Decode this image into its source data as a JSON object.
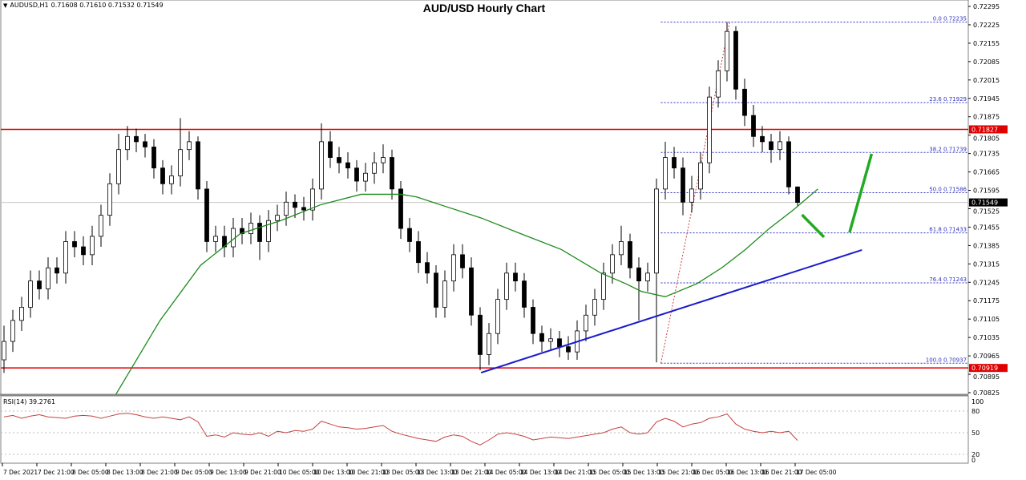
{
  "header": {
    "symbol": "AUDUSD,H1",
    "ohlc": "0.71608 0.71610 0.71532 0.71549",
    "collapse_icon": "triangle-down-icon"
  },
  "chart_data": [
    {
      "type": "candlestick",
      "title": "AUD/USD Hourly Chart",
      "ylim": [
        0.70825,
        0.72295
      ],
      "grid": false,
      "y_ticks": [
        "0.72295",
        "0.72225",
        "0.72155",
        "0.72085",
        "0.72015",
        "0.71945",
        "0.71875",
        "0.71805",
        "0.71735",
        "0.71665",
        "0.71595",
        "0.71525",
        "0.71455",
        "0.71385",
        "0.71315",
        "0.71245",
        "0.71175",
        "0.71105",
        "0.71035",
        "0.70965",
        "0.70895",
        "0.70825"
      ],
      "x_ticks": [
        "7 Dec 2021",
        "7 Dec 21:00",
        "8 Dec 05:00",
        "8 Dec 13:00",
        "8 Dec 21:00",
        "9 Dec 05:00",
        "9 Dec 13:00",
        "9 Dec 21:00",
        "10 Dec 05:00",
        "10 Dec 13:00",
        "10 Dec 21:00",
        "13 Dec 05:00",
        "13 Dec 13:00",
        "13 Dec 21:00",
        "14 Dec 05:00",
        "14 Dec 13:00",
        "14 Dec 21:00",
        "15 Dec 05:00",
        "15 Dec 13:00",
        "15 Dec 21:00",
        "16 Dec 05:00",
        "16 Dec 13:00",
        "16 Dec 21:00",
        "17 Dec 05:00"
      ],
      "candles_ohlc": [
        [
          0.7095,
          0.7108,
          0.709,
          0.7102
        ],
        [
          0.7102,
          0.7114,
          0.7098,
          0.711
        ],
        [
          0.711,
          0.7119,
          0.7106,
          0.7115
        ],
        [
          0.7115,
          0.7129,
          0.7111,
          0.7125
        ],
        [
          0.7125,
          0.7129,
          0.7118,
          0.7122
        ],
        [
          0.7122,
          0.7134,
          0.7118,
          0.713
        ],
        [
          0.713,
          0.7134,
          0.7124,
          0.7128
        ],
        [
          0.7128,
          0.7144,
          0.7124,
          0.714
        ],
        [
          0.714,
          0.7144,
          0.7134,
          0.7138
        ],
        [
          0.7138,
          0.7142,
          0.7131,
          0.7135
        ],
        [
          0.7135,
          0.7146,
          0.7131,
          0.7142
        ],
        [
          0.7142,
          0.7154,
          0.7138,
          0.715
        ],
        [
          0.715,
          0.7166,
          0.7146,
          0.7162
        ],
        [
          0.7162,
          0.7181,
          0.7158,
          0.7175
        ],
        [
          0.7175,
          0.7184,
          0.7171,
          0.718
        ],
        [
          0.718,
          0.7183,
          0.7174,
          0.7178
        ],
        [
          0.7178,
          0.7181,
          0.7172,
          0.7176
        ],
        [
          0.7176,
          0.7179,
          0.7164,
          0.7168
        ],
        [
          0.7168,
          0.7171,
          0.7158,
          0.7162
        ],
        [
          0.7162,
          0.7169,
          0.7158,
          0.7165
        ],
        [
          0.7165,
          0.7187,
          0.7161,
          0.7175
        ],
        [
          0.7175,
          0.7182,
          0.7171,
          0.7178
        ],
        [
          0.7178,
          0.718,
          0.7156,
          0.716
        ],
        [
          0.716,
          0.7163,
          0.7136,
          0.714
        ],
        [
          0.714,
          0.7146,
          0.7136,
          0.7142
        ],
        [
          0.7142,
          0.7146,
          0.7134,
          0.7138
        ],
        [
          0.7138,
          0.7149,
          0.7134,
          0.7145
        ],
        [
          0.7145,
          0.7149,
          0.7139,
          0.7143
        ],
        [
          0.7143,
          0.7151,
          0.7139,
          0.7147
        ],
        [
          0.7147,
          0.715,
          0.7133,
          0.714
        ],
        [
          0.714,
          0.7152,
          0.7136,
          0.7148
        ],
        [
          0.7148,
          0.7154,
          0.7144,
          0.715
        ],
        [
          0.715,
          0.7159,
          0.7146,
          0.7155
        ],
        [
          0.7155,
          0.7158,
          0.7149,
          0.7153
        ],
        [
          0.7153,
          0.7157,
          0.7148,
          0.7152
        ],
        [
          0.7152,
          0.7164,
          0.7148,
          0.716
        ],
        [
          0.716,
          0.7185,
          0.7156,
          0.7178
        ],
        [
          0.7178,
          0.7182,
          0.7168,
          0.7172
        ],
        [
          0.7172,
          0.7176,
          0.7166,
          0.717
        ],
        [
          0.717,
          0.7174,
          0.7164,
          0.7168
        ],
        [
          0.7168,
          0.7171,
          0.7159,
          0.7163
        ],
        [
          0.7163,
          0.717,
          0.7159,
          0.7166
        ],
        [
          0.7166,
          0.7174,
          0.7162,
          0.717
        ],
        [
          0.717,
          0.7177,
          0.7166,
          0.7172
        ],
        [
          0.7172,
          0.7175,
          0.7156,
          0.716
        ],
        [
          0.716,
          0.7163,
          0.7141,
          0.7145
        ],
        [
          0.7145,
          0.7149,
          0.7136,
          0.714
        ],
        [
          0.714,
          0.7144,
          0.7128,
          0.7132
        ],
        [
          0.7132,
          0.7136,
          0.7124,
          0.7128
        ],
        [
          0.7128,
          0.7131,
          0.7111,
          0.7115
        ],
        [
          0.7115,
          0.7129,
          0.7111,
          0.7125
        ],
        [
          0.7125,
          0.7139,
          0.7121,
          0.7135
        ],
        [
          0.7135,
          0.7139,
          0.7126,
          0.713
        ],
        [
          0.713,
          0.7134,
          0.7108,
          0.7112
        ],
        [
          0.7112,
          0.7115,
          0.7091,
          0.7097
        ],
        [
          0.7097,
          0.7109,
          0.7093,
          0.7105
        ],
        [
          0.7105,
          0.7122,
          0.7101,
          0.7118
        ],
        [
          0.7118,
          0.7132,
          0.7114,
          0.7128
        ],
        [
          0.7128,
          0.7132,
          0.7121,
          0.7125
        ],
        [
          0.7125,
          0.7128,
          0.7111,
          0.7115
        ],
        [
          0.7115,
          0.7118,
          0.7101,
          0.7105
        ],
        [
          0.7105,
          0.7108,
          0.7098,
          0.7102
        ],
        [
          0.7102,
          0.7107,
          0.7099,
          0.7103
        ],
        [
          0.7103,
          0.7106,
          0.7096,
          0.71
        ],
        [
          0.71,
          0.7104,
          0.7095,
          0.7098
        ],
        [
          0.7098,
          0.711,
          0.7095,
          0.7106
        ],
        [
          0.7106,
          0.7116,
          0.7102,
          0.7112
        ],
        [
          0.7112,
          0.7122,
          0.7108,
          0.7118
        ],
        [
          0.7118,
          0.7132,
          0.7114,
          0.7128
        ],
        [
          0.7128,
          0.7139,
          0.7124,
          0.7135
        ],
        [
          0.7135,
          0.7146,
          0.7131,
          0.714
        ],
        [
          0.714,
          0.7143,
          0.7126,
          0.713
        ],
        [
          0.713,
          0.7134,
          0.711,
          0.7125
        ],
        [
          0.7125,
          0.7132,
          0.7121,
          0.7128
        ],
        [
          0.7128,
          0.7164,
          0.7094,
          0.716
        ],
        [
          0.716,
          0.7178,
          0.7156,
          0.7172
        ],
        [
          0.7172,
          0.7176,
          0.7164,
          0.7168
        ],
        [
          0.7168,
          0.7172,
          0.715,
          0.7155
        ],
        [
          0.7155,
          0.7165,
          0.7151,
          0.716
        ],
        [
          0.716,
          0.7174,
          0.7156,
          0.717
        ],
        [
          0.717,
          0.7199,
          0.7166,
          0.7195
        ],
        [
          0.7195,
          0.7209,
          0.7191,
          0.7205
        ],
        [
          0.7205,
          0.72235,
          0.7201,
          0.722
        ],
        [
          0.722,
          0.7222,
          0.7194,
          0.7198
        ],
        [
          0.7198,
          0.7202,
          0.7184,
          0.7188
        ],
        [
          0.7188,
          0.7192,
          0.7176,
          0.718
        ],
        [
          0.718,
          0.7184,
          0.7174,
          0.7178
        ],
        [
          0.7178,
          0.7181,
          0.717,
          0.7175
        ],
        [
          0.7175,
          0.7182,
          0.7171,
          0.7178
        ],
        [
          0.7178,
          0.718,
          0.7158,
          0.71608
        ],
        [
          0.71608,
          0.7161,
          0.71532,
          0.71549
        ]
      ],
      "moving_average": [
        [
          12.7,
          0.70819
        ],
        [
          17.7,
          0.711
        ],
        [
          22.3,
          0.7131
        ],
        [
          26.8,
          0.7143
        ],
        [
          31.4,
          0.7148
        ],
        [
          35.9,
          0.7154
        ],
        [
          40.5,
          0.7158
        ],
        [
          45,
          0.7158
        ],
        [
          46.8,
          0.7157
        ],
        [
          49.5,
          0.7154
        ],
        [
          54.1,
          0.7149
        ],
        [
          58.6,
          0.7143
        ],
        [
          63.2,
          0.7137
        ],
        [
          67.7,
          0.7128
        ],
        [
          70.5,
          0.7124
        ],
        [
          72.3,
          0.7121
        ],
        [
          75,
          0.7119
        ],
        [
          78.6,
          0.7124
        ],
        [
          81.4,
          0.713
        ],
        [
          84.1,
          0.7137
        ],
        [
          86.8,
          0.7145
        ],
        [
          89.5,
          0.7152
        ],
        [
          92.3,
          0.716
        ]
      ],
      "horizontal_lines": [
        {
          "price": 0.71827,
          "label": "0.71827",
          "color": "#e00000"
        },
        {
          "price": 0.70919,
          "label": "0.70919",
          "color": "#e00000"
        },
        {
          "price": 0.71549,
          "label": "0.71549",
          "color": "#c8c8c8"
        }
      ],
      "fibonacci": {
        "from": [
          74.5,
          0.70937
        ],
        "to": [
          82.3,
          0.72235
        ],
        "levels": [
          {
            "label": "0.0 0.72235",
            "price": 0.72235
          },
          {
            "label": "23.6 0.71929",
            "price": 0.71929
          },
          {
            "label": "38.2 0.71739",
            "price": 0.71739
          },
          {
            "label": "50.0 0.71586",
            "price": 0.71586
          },
          {
            "label": "61.8 0.71433",
            "price": 0.71433
          },
          {
            "label": "76.4 0.71243",
            "price": 0.71243
          },
          {
            "label": "100.0 0.70937",
            "price": 0.70937
          }
        ],
        "color": "#3030c0"
      },
      "trendline": {
        "from": [
          54.1,
          0.70901
        ],
        "to": [
          97.3,
          0.71368
        ],
        "color": "#1a1acc"
      },
      "arrows": [
        {
          "from": [
            90.5,
            0.71502
          ],
          "to": [
            93,
            0.71417
          ],
          "color": "#22aa22"
        },
        {
          "from": [
            95.9,
            0.71435
          ],
          "to": [
            98.4,
            0.71734
          ],
          "color": "#22aa22"
        }
      ],
      "colors": {
        "bull": "#ffffff",
        "bear": "#000000",
        "ma": "#1a8a1a"
      }
    },
    {
      "type": "line",
      "title": "RSI(14) 39.2761",
      "ylim": [
        0,
        100
      ],
      "y_ticks": [
        "100",
        "80",
        "50",
        "20",
        "0"
      ],
      "levels": [
        80,
        50,
        20
      ],
      "values": [
        72,
        74,
        70,
        73,
        75,
        72,
        71,
        70,
        73,
        74,
        73,
        70,
        73,
        76,
        77,
        75,
        72,
        70,
        72,
        70,
        68,
        72,
        65,
        45,
        47,
        44,
        50,
        48,
        47,
        50,
        45,
        52,
        50,
        53,
        52,
        55,
        66,
        62,
        58,
        57,
        55,
        56,
        58,
        60,
        52,
        48,
        45,
        42,
        40,
        38,
        44,
        47,
        45,
        38,
        33,
        40,
        48,
        50,
        48,
        45,
        40,
        42,
        44,
        43,
        42,
        44,
        46,
        48,
        50,
        55,
        58,
        50,
        48,
        50,
        65,
        70,
        66,
        58,
        62,
        64,
        70,
        72,
        76,
        62,
        55,
        52,
        50,
        52,
        50,
        52,
        39.28
      ],
      "color": "#c84040"
    }
  ]
}
